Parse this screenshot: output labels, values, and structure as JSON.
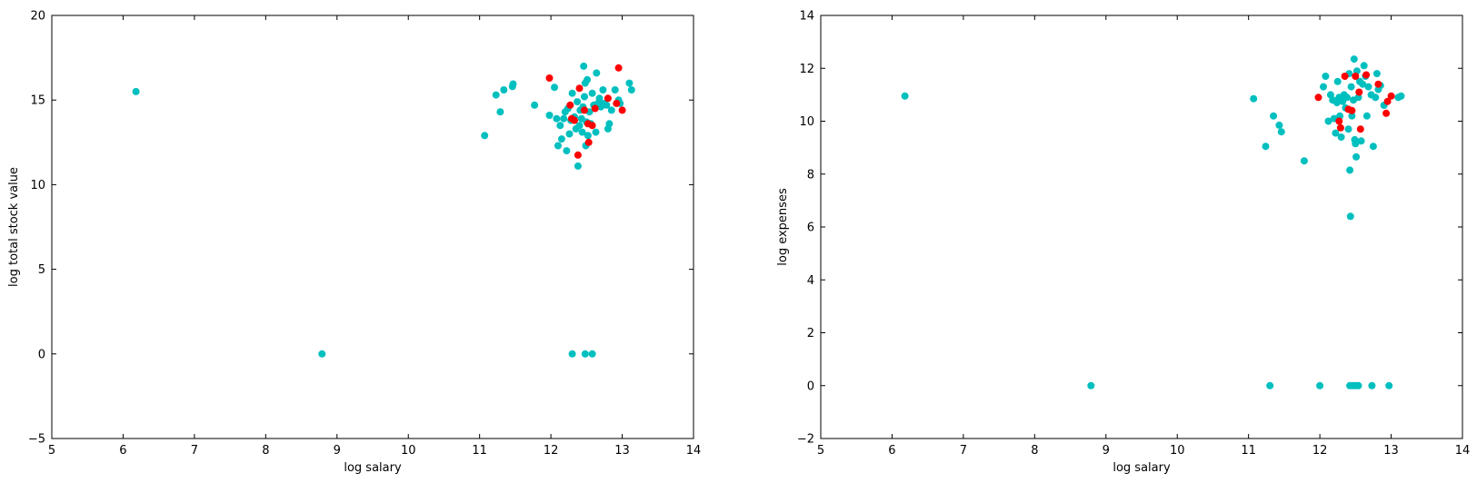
{
  "colors": {
    "poi": "#ff0000",
    "non_poi": "#00bfbf",
    "axes": "#000000",
    "background": "#ffffff"
  },
  "chart_data": [
    {
      "type": "scatter",
      "title": "",
      "xlabel": "log salary",
      "ylabel": "log total stock value",
      "xlim": [
        5,
        14
      ],
      "ylim": [
        -5,
        20
      ],
      "xticks": [
        5,
        6,
        7,
        8,
        9,
        10,
        11,
        12,
        13,
        14
      ],
      "yticks": [
        -5,
        0,
        5,
        10,
        15,
        20
      ],
      "xtick_labels": [
        "5",
        "6",
        "7",
        "8",
        "9",
        "10",
        "11",
        "12",
        "13",
        "14"
      ],
      "ytick_labels": [
        "−5",
        "0",
        "5",
        "10",
        "15",
        "20"
      ],
      "grid": false,
      "series": [
        {
          "color": "#00bfbf",
          "points": [
            [
              6.18,
              15.5
            ],
            [
              8.79,
              0.0
            ],
            [
              12.3,
              0.0
            ],
            [
              12.48,
              0.0
            ],
            [
              12.58,
              0.0
            ],
            [
              11.07,
              12.9
            ],
            [
              11.23,
              15.3
            ],
            [
              11.29,
              14.3
            ],
            [
              11.34,
              15.6
            ],
            [
              11.46,
              15.8
            ],
            [
              11.47,
              15.95
            ],
            [
              11.77,
              14.7
            ],
            [
              11.98,
              14.1
            ],
            [
              12.05,
              15.75
            ],
            [
              12.08,
              13.9
            ],
            [
              12.1,
              12.3
            ],
            [
              12.13,
              13.5
            ],
            [
              12.15,
              12.7
            ],
            [
              12.18,
              13.9
            ],
            [
              12.2,
              14.3
            ],
            [
              12.22,
              12.0
            ],
            [
              12.24,
              14.5
            ],
            [
              12.26,
              13.0
            ],
            [
              12.28,
              13.8
            ],
            [
              12.3,
              15.4
            ],
            [
              12.33,
              14.0
            ],
            [
              12.35,
              13.3
            ],
            [
              12.37,
              14.9
            ],
            [
              12.38,
              11.1
            ],
            [
              12.4,
              13.5
            ],
            [
              12.41,
              14.4
            ],
            [
              12.43,
              13.9
            ],
            [
              12.44,
              13.1
            ],
            [
              12.45,
              14.6
            ],
            [
              12.46,
              17.0
            ],
            [
              12.47,
              15.2
            ],
            [
              12.48,
              16.0
            ],
            [
              12.49,
              12.3
            ],
            [
              12.5,
              13.7
            ],
            [
              12.51,
              16.2
            ],
            [
              12.52,
              12.9
            ],
            [
              12.54,
              14.3
            ],
            [
              12.56,
              13.6
            ],
            [
              12.58,
              15.4
            ],
            [
              12.6,
              14.7
            ],
            [
              12.63,
              13.1
            ],
            [
              12.64,
              16.6
            ],
            [
              12.66,
              14.8
            ],
            [
              12.68,
              15.1
            ],
            [
              12.7,
              14.6
            ],
            [
              12.73,
              15.6
            ],
            [
              12.75,
              14.8
            ],
            [
              12.78,
              14.7
            ],
            [
              12.8,
              13.3
            ],
            [
              12.82,
              13.6
            ],
            [
              12.85,
              14.4
            ],
            [
              12.9,
              15.6
            ],
            [
              12.95,
              15.0
            ],
            [
              12.97,
              14.8
            ],
            [
              13.1,
              16.0
            ],
            [
              13.13,
              15.6
            ]
          ]
        },
        {
          "color": "#ff0000",
          "points": [
            [
              11.98,
              16.3
            ],
            [
              12.27,
              14.7
            ],
            [
              12.29,
              13.9
            ],
            [
              12.33,
              13.8
            ],
            [
              12.38,
              11.75
            ],
            [
              12.4,
              15.7
            ],
            [
              12.47,
              14.4
            ],
            [
              12.52,
              13.6
            ],
            [
              12.53,
              12.5
            ],
            [
              12.58,
              13.5
            ],
            [
              12.62,
              14.5
            ],
            [
              12.8,
              15.1
            ],
            [
              12.92,
              14.8
            ],
            [
              12.95,
              16.9
            ],
            [
              13.0,
              14.4
            ]
          ]
        }
      ]
    },
    {
      "type": "scatter",
      "title": "",
      "xlabel": "log salary",
      "ylabel": "log expenses",
      "xlim": [
        5,
        14
      ],
      "ylim": [
        -2,
        14
      ],
      "xticks": [
        5,
        6,
        7,
        8,
        9,
        10,
        11,
        12,
        13,
        14
      ],
      "yticks": [
        -2,
        0,
        2,
        4,
        6,
        8,
        10,
        12,
        14
      ],
      "xtick_labels": [
        "5",
        "6",
        "7",
        "8",
        "9",
        "10",
        "11",
        "12",
        "13",
        "14"
      ],
      "ytick_labels": [
        "−2",
        "0",
        "2",
        "4",
        "6",
        "8",
        "10",
        "12",
        "14"
      ],
      "grid": false,
      "series": [
        {
          "color": "#00bfbf",
          "points": [
            [
              6.18,
              10.95
            ],
            [
              8.79,
              0.0
            ],
            [
              11.3,
              0.0
            ],
            [
              12.0,
              0.0
            ],
            [
              12.42,
              0.0
            ],
            [
              12.46,
              0.0
            ],
            [
              12.5,
              0.0
            ],
            [
              12.54,
              0.0
            ],
            [
              12.73,
              0.0
            ],
            [
              12.97,
              0.0
            ],
            [
              11.07,
              10.85
            ],
            [
              11.24,
              9.05
            ],
            [
              11.35,
              10.2
            ],
            [
              11.43,
              9.85
            ],
            [
              11.46,
              9.6
            ],
            [
              11.78,
              8.5
            ],
            [
              12.05,
              11.3
            ],
            [
              12.08,
              11.7
            ],
            [
              12.12,
              10.0
            ],
            [
              12.15,
              11.0
            ],
            [
              12.18,
              10.8
            ],
            [
              12.2,
              10.1
            ],
            [
              12.22,
              9.55
            ],
            [
              12.24,
              10.7
            ],
            [
              12.25,
              11.5
            ],
            [
              12.27,
              10.9
            ],
            [
              12.28,
              10.2
            ],
            [
              12.3,
              9.4
            ],
            [
              12.32,
              10.75
            ],
            [
              12.34,
              11.0
            ],
            [
              12.36,
              10.5
            ],
            [
              12.38,
              10.9
            ],
            [
              12.4,
              9.7
            ],
            [
              12.41,
              11.8
            ],
            [
              12.42,
              8.15
            ],
            [
              12.43,
              6.4
            ],
            [
              12.44,
              11.3
            ],
            [
              12.45,
              10.2
            ],
            [
              12.47,
              10.8
            ],
            [
              12.48,
              12.35
            ],
            [
              12.49,
              9.3
            ],
            [
              12.5,
              9.15
            ],
            [
              12.51,
              8.65
            ],
            [
              12.52,
              11.9
            ],
            [
              12.54,
              10.9
            ],
            [
              12.56,
              11.5
            ],
            [
              12.58,
              9.25
            ],
            [
              12.6,
              11.4
            ],
            [
              12.62,
              12.1
            ],
            [
              12.64,
              11.7
            ],
            [
              12.66,
              10.2
            ],
            [
              12.68,
              11.3
            ],
            [
              12.72,
              11.0
            ],
            [
              12.75,
              9.05
            ],
            [
              12.78,
              10.9
            ],
            [
              12.8,
              11.8
            ],
            [
              12.82,
              11.2
            ],
            [
              12.85,
              11.35
            ],
            [
              12.9,
              10.6
            ],
            [
              13.1,
              10.9
            ],
            [
              13.14,
              10.95
            ]
          ]
        },
        {
          "color": "#ff0000",
          "points": [
            [
              11.98,
              10.9
            ],
            [
              12.27,
              10.0
            ],
            [
              12.29,
              9.75
            ],
            [
              12.35,
              11.7
            ],
            [
              12.4,
              10.45
            ],
            [
              12.45,
              10.4
            ],
            [
              12.5,
              11.7
            ],
            [
              12.55,
              11.1
            ],
            [
              12.57,
              9.7
            ],
            [
              12.65,
              11.75
            ],
            [
              12.82,
              11.4
            ],
            [
              12.93,
              10.3
            ],
            [
              12.95,
              10.75
            ],
            [
              13.0,
              10.95
            ]
          ]
        }
      ]
    }
  ]
}
